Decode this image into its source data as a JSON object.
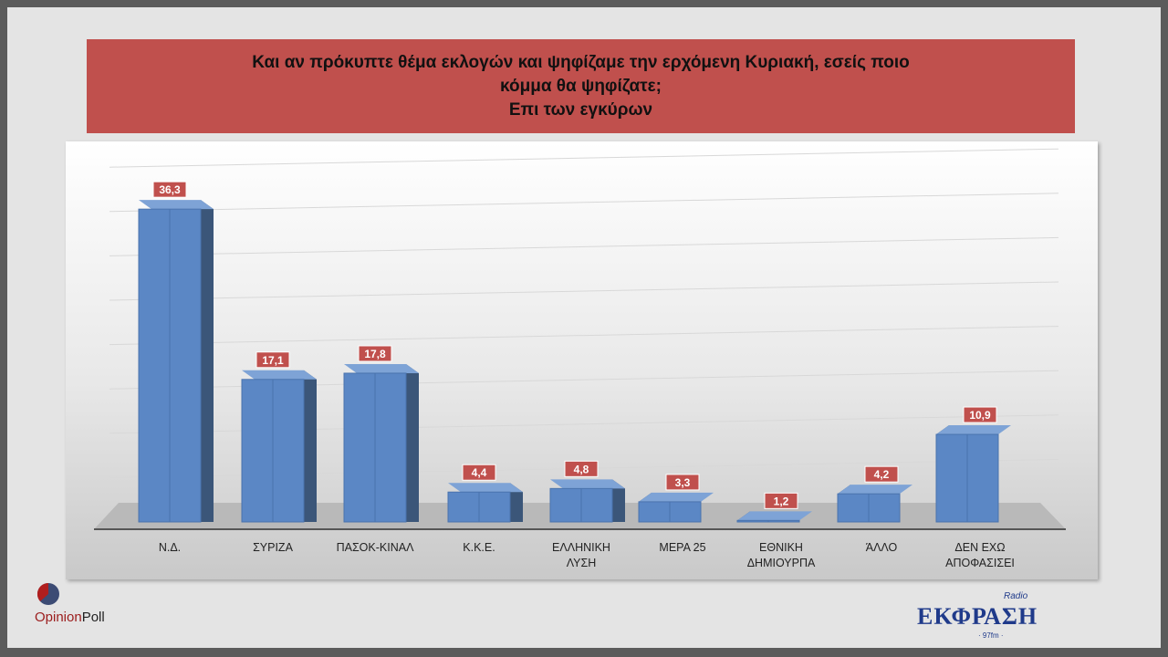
{
  "title_lines": [
    "Και αν πρόκυπτε θέμα εκλογών και ψηφίζαμε την ερχόμενη Κυριακή, εσείς ποιο",
    "κόμμα θα ψηφίζατε;",
    "Επι των εγκύρων"
  ],
  "chart_data": {
    "type": "bar",
    "style": "3d-column",
    "categories": [
      "Ν.Δ.",
      "ΣΥΡΙΖΑ",
      "ΠΑΣΟΚ-ΚΙΝΑΛ",
      "Κ.Κ.Ε.",
      "ΕΛΛΗΝΙΚΗ ΛΥΣΗ",
      "ΜΕΡΑ 25",
      "ΕΘΝΙΚΗ ΔΗΜΙΟΥΡΠΑ",
      "ΆΛΛΟ",
      "ΔΕΝ ΕΧΩ ΑΠΟΦΑΣΙΣΕΙ"
    ],
    "category_lines": [
      [
        "Ν.Δ."
      ],
      [
        "ΣΥΡΙΖΑ"
      ],
      [
        "ΠΑΣΟΚ-ΚΙΝΑΛ"
      ],
      [
        "Κ.Κ.Ε."
      ],
      [
        "ΕΛΛΗΝΙΚΗ",
        "ΛΥΣΗ"
      ],
      [
        "ΜΕΡΑ 25"
      ],
      [
        "ΕΘΝΙΚΗ",
        "ΔΗΜΙΟΥΡΠΑ"
      ],
      [
        "ΆΛΛΟ"
      ],
      [
        "ΔΕΝ ΕΧΩ",
        "ΑΠΟΦΑΣΙΣΕΙ"
      ]
    ],
    "values": [
      36.3,
      17.1,
      17.8,
      4.4,
      4.8,
      3.3,
      1.2,
      4.2,
      10.9
    ],
    "data_labels": [
      "36,3",
      "17,1",
      "17,8",
      "4,4",
      "4,8",
      "3,3",
      "1,2",
      "4,2",
      "10,9"
    ],
    "ylim": [
      0,
      40
    ],
    "grid": true,
    "colors": {
      "bar": "#5b87c5",
      "bar_side": "#3b5679",
      "label_bg": "#c0504d",
      "label_text": "#ffffff"
    }
  },
  "logos": {
    "left": "OpinionPoll",
    "left_a": "Opinion",
    "left_b": "Poll",
    "right": "ΕΚΦΡΑΣΗ",
    "right_small": "Radio",
    "right_fm": "· 97fm ·"
  }
}
